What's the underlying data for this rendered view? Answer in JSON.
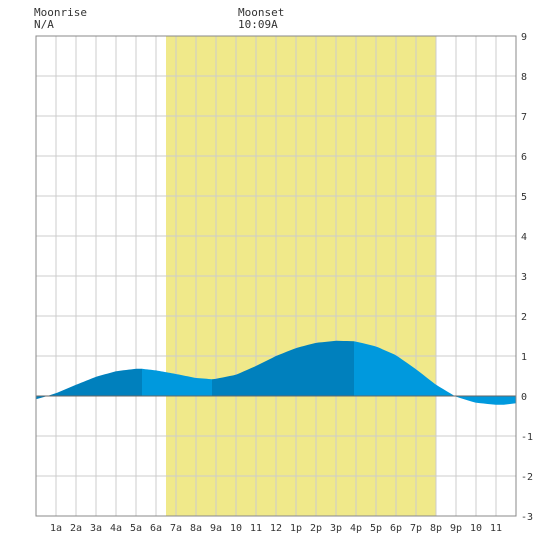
{
  "header": {
    "moonrise_label": "Moonrise",
    "moonrise_value": "N/A",
    "moonset_label": "Moonset",
    "moonset_value": "10:09A"
  },
  "chart_data": {
    "type": "area",
    "title": "",
    "xlabel": "",
    "ylabel": "",
    "x_tick_labels": [
      "1a",
      "2a",
      "3a",
      "4a",
      "5a",
      "6a",
      "7a",
      "8a",
      "9a",
      "10",
      "11",
      "12",
      "1p",
      "2p",
      "3p",
      "4p",
      "5p",
      "6p",
      "7p",
      "8p",
      "9p",
      "10",
      "11"
    ],
    "xlim": [
      0,
      24
    ],
    "ylim": [
      -3,
      9
    ],
    "y_ticks": [
      -3,
      -2,
      -1,
      0,
      1,
      2,
      3,
      4,
      5,
      6,
      7,
      8,
      9
    ],
    "grid": true,
    "daylight": {
      "start_hour": 6.5,
      "end_hour": 20.0
    },
    "tide": {
      "x": [
        0,
        0.5,
        1,
        2,
        3,
        4,
        5,
        5.3,
        6,
        7,
        8,
        8.8,
        9,
        10,
        11,
        12,
        13,
        14,
        15,
        15.9,
        16,
        17,
        18,
        19,
        20,
        21,
        22,
        23,
        23.4,
        24
      ],
      "y": [
        -0.08,
        -0.01,
        0.07,
        0.28,
        0.48,
        0.62,
        0.68,
        0.68,
        0.64,
        0.55,
        0.45,
        0.42,
        0.43,
        0.53,
        0.75,
        1.0,
        1.2,
        1.33,
        1.38,
        1.37,
        1.36,
        1.24,
        1.02,
        0.67,
        0.28,
        -0.02,
        -0.17,
        -0.22,
        -0.22,
        -0.18
      ]
    },
    "bands": [
      {
        "from": 0,
        "to": 5.3,
        "color": "#0080bd"
      },
      {
        "from": 5.3,
        "to": 8.8,
        "color": "#0099dd"
      },
      {
        "from": 8.8,
        "to": 15.9,
        "color": "#0080bd"
      },
      {
        "from": 15.9,
        "to": 24,
        "color": "#0099dd"
      }
    ],
    "colors": {
      "daylight": "#f0e98a",
      "grid": "#cccccc",
      "border": "#888888",
      "zero_line": "#666666"
    }
  }
}
